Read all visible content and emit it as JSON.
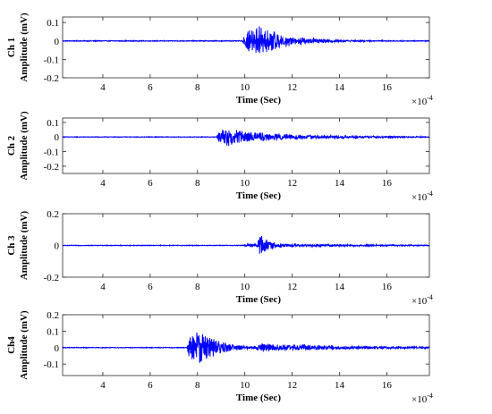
{
  "chart_data": [
    {
      "type": "line",
      "channel_label": "Ch 1",
      "ylabel": "Amplitude (mV)",
      "xlabel": "Time (Sec)",
      "x_multiplier": "×10",
      "x_exponent": "-4",
      "xlim": [
        2.3,
        17.8
      ],
      "ylim": [
        -0.2,
        0.13
      ],
      "xticks": [
        "4",
        "6",
        "8",
        "10",
        "12",
        "14",
        "16"
      ],
      "xtick_values": [
        4,
        6,
        8,
        10,
        12,
        14,
        16
      ],
      "yticks": [
        "0.1",
        "0",
        "-0.1",
        "-0.2"
      ],
      "ytick_values": [
        0.1,
        0,
        -0.1,
        -0.2
      ],
      "series": [
        {
          "color": "#0000ff",
          "signal": {
            "noise": 0.002,
            "bursts": [
              {
                "t": 9.9,
                "rise": 0.25,
                "decay": 1.4,
                "amp": 0.08
              },
              {
                "t": 10.35,
                "rise": 0.2,
                "decay": 0.8,
                "amp": 0.05
              }
            ]
          }
        }
      ]
    },
    {
      "type": "line",
      "channel_label": "Ch 2",
      "ylabel": "Amplitude (mV)",
      "xlabel": "Time (Sec)",
      "x_multiplier": "×10",
      "x_exponent": "-4",
      "xlim": [
        2.3,
        17.8
      ],
      "ylim": [
        -0.25,
        0.13
      ],
      "xticks": [
        "4",
        "6",
        "8",
        "10",
        "12",
        "14",
        "16"
      ],
      "xtick_values": [
        4,
        6,
        8,
        10,
        12,
        14,
        16
      ],
      "yticks": [
        "0.1",
        "0",
        "-0.1",
        "-0.2"
      ],
      "ytick_values": [
        0.1,
        0,
        -0.1,
        -0.2
      ],
      "series": [
        {
          "color": "#0000ff",
          "signal": {
            "noise": 0.002,
            "bursts": [
              {
                "t": 8.8,
                "rise": 0.3,
                "decay": 1.0,
                "amp": 0.1
              },
              {
                "t": 10.2,
                "rise": 0.3,
                "decay": 3.5,
                "amp": 0.02
              }
            ]
          }
        }
      ]
    },
    {
      "type": "line",
      "channel_label": "Ch 3",
      "ylabel": "Amplitude (mV)",
      "xlabel": "Time (Sec)",
      "x_multiplier": "×10",
      "x_exponent": "-4",
      "xlim": [
        2.3,
        17.8
      ],
      "ylim": [
        -0.2,
        0.2
      ],
      "xticks": [
        "4",
        "6",
        "8",
        "10",
        "12",
        "14",
        "16"
      ],
      "xtick_values": [
        4,
        6,
        8,
        10,
        12,
        14,
        16
      ],
      "yticks": [
        "0.2",
        "0",
        "-0.2"
      ],
      "ytick_values": [
        0.2,
        0,
        -0.2
      ],
      "series": [
        {
          "color": "#0000ff",
          "signal": {
            "noise": 0.002,
            "bursts": [
              {
                "t": 9.9,
                "rise": 0.3,
                "decay": 4.0,
                "amp": 0.012
              },
              {
                "t": 10.55,
                "rise": 0.08,
                "decay": 0.3,
                "amp": 0.09
              }
            ]
          }
        }
      ]
    },
    {
      "type": "line",
      "channel_label": "Ch4",
      "ylabel": "Amplitude (mV)",
      "xlabel": "Time (Sec)",
      "x_multiplier": "×10",
      "x_exponent": "-4",
      "xlim": [
        2.3,
        17.8
      ],
      "ylim": [
        -0.17,
        0.2
      ],
      "xticks": [
        "4",
        "6",
        "8",
        "10",
        "12",
        "14",
        "16"
      ],
      "xtick_values": [
        4,
        6,
        8,
        10,
        12,
        14,
        16
      ],
      "yticks": [
        "0.2",
        "0.1",
        "0",
        "-0.1"
      ],
      "ytick_values": [
        0.2,
        0.1,
        0,
        -0.1
      ],
      "series": [
        {
          "color": "#0000ff",
          "signal": {
            "noise": 0.002,
            "bursts": [
              {
                "t": 7.55,
                "rise": 0.3,
                "decay": 0.8,
                "amp": 0.18
              },
              {
                "t": 10.3,
                "rise": 0.4,
                "decay": 1.2,
                "amp": 0.04
              },
              {
                "t": 11.5,
                "rise": 0.5,
                "decay": 4.0,
                "amp": 0.015
              }
            ]
          }
        }
      ]
    }
  ]
}
